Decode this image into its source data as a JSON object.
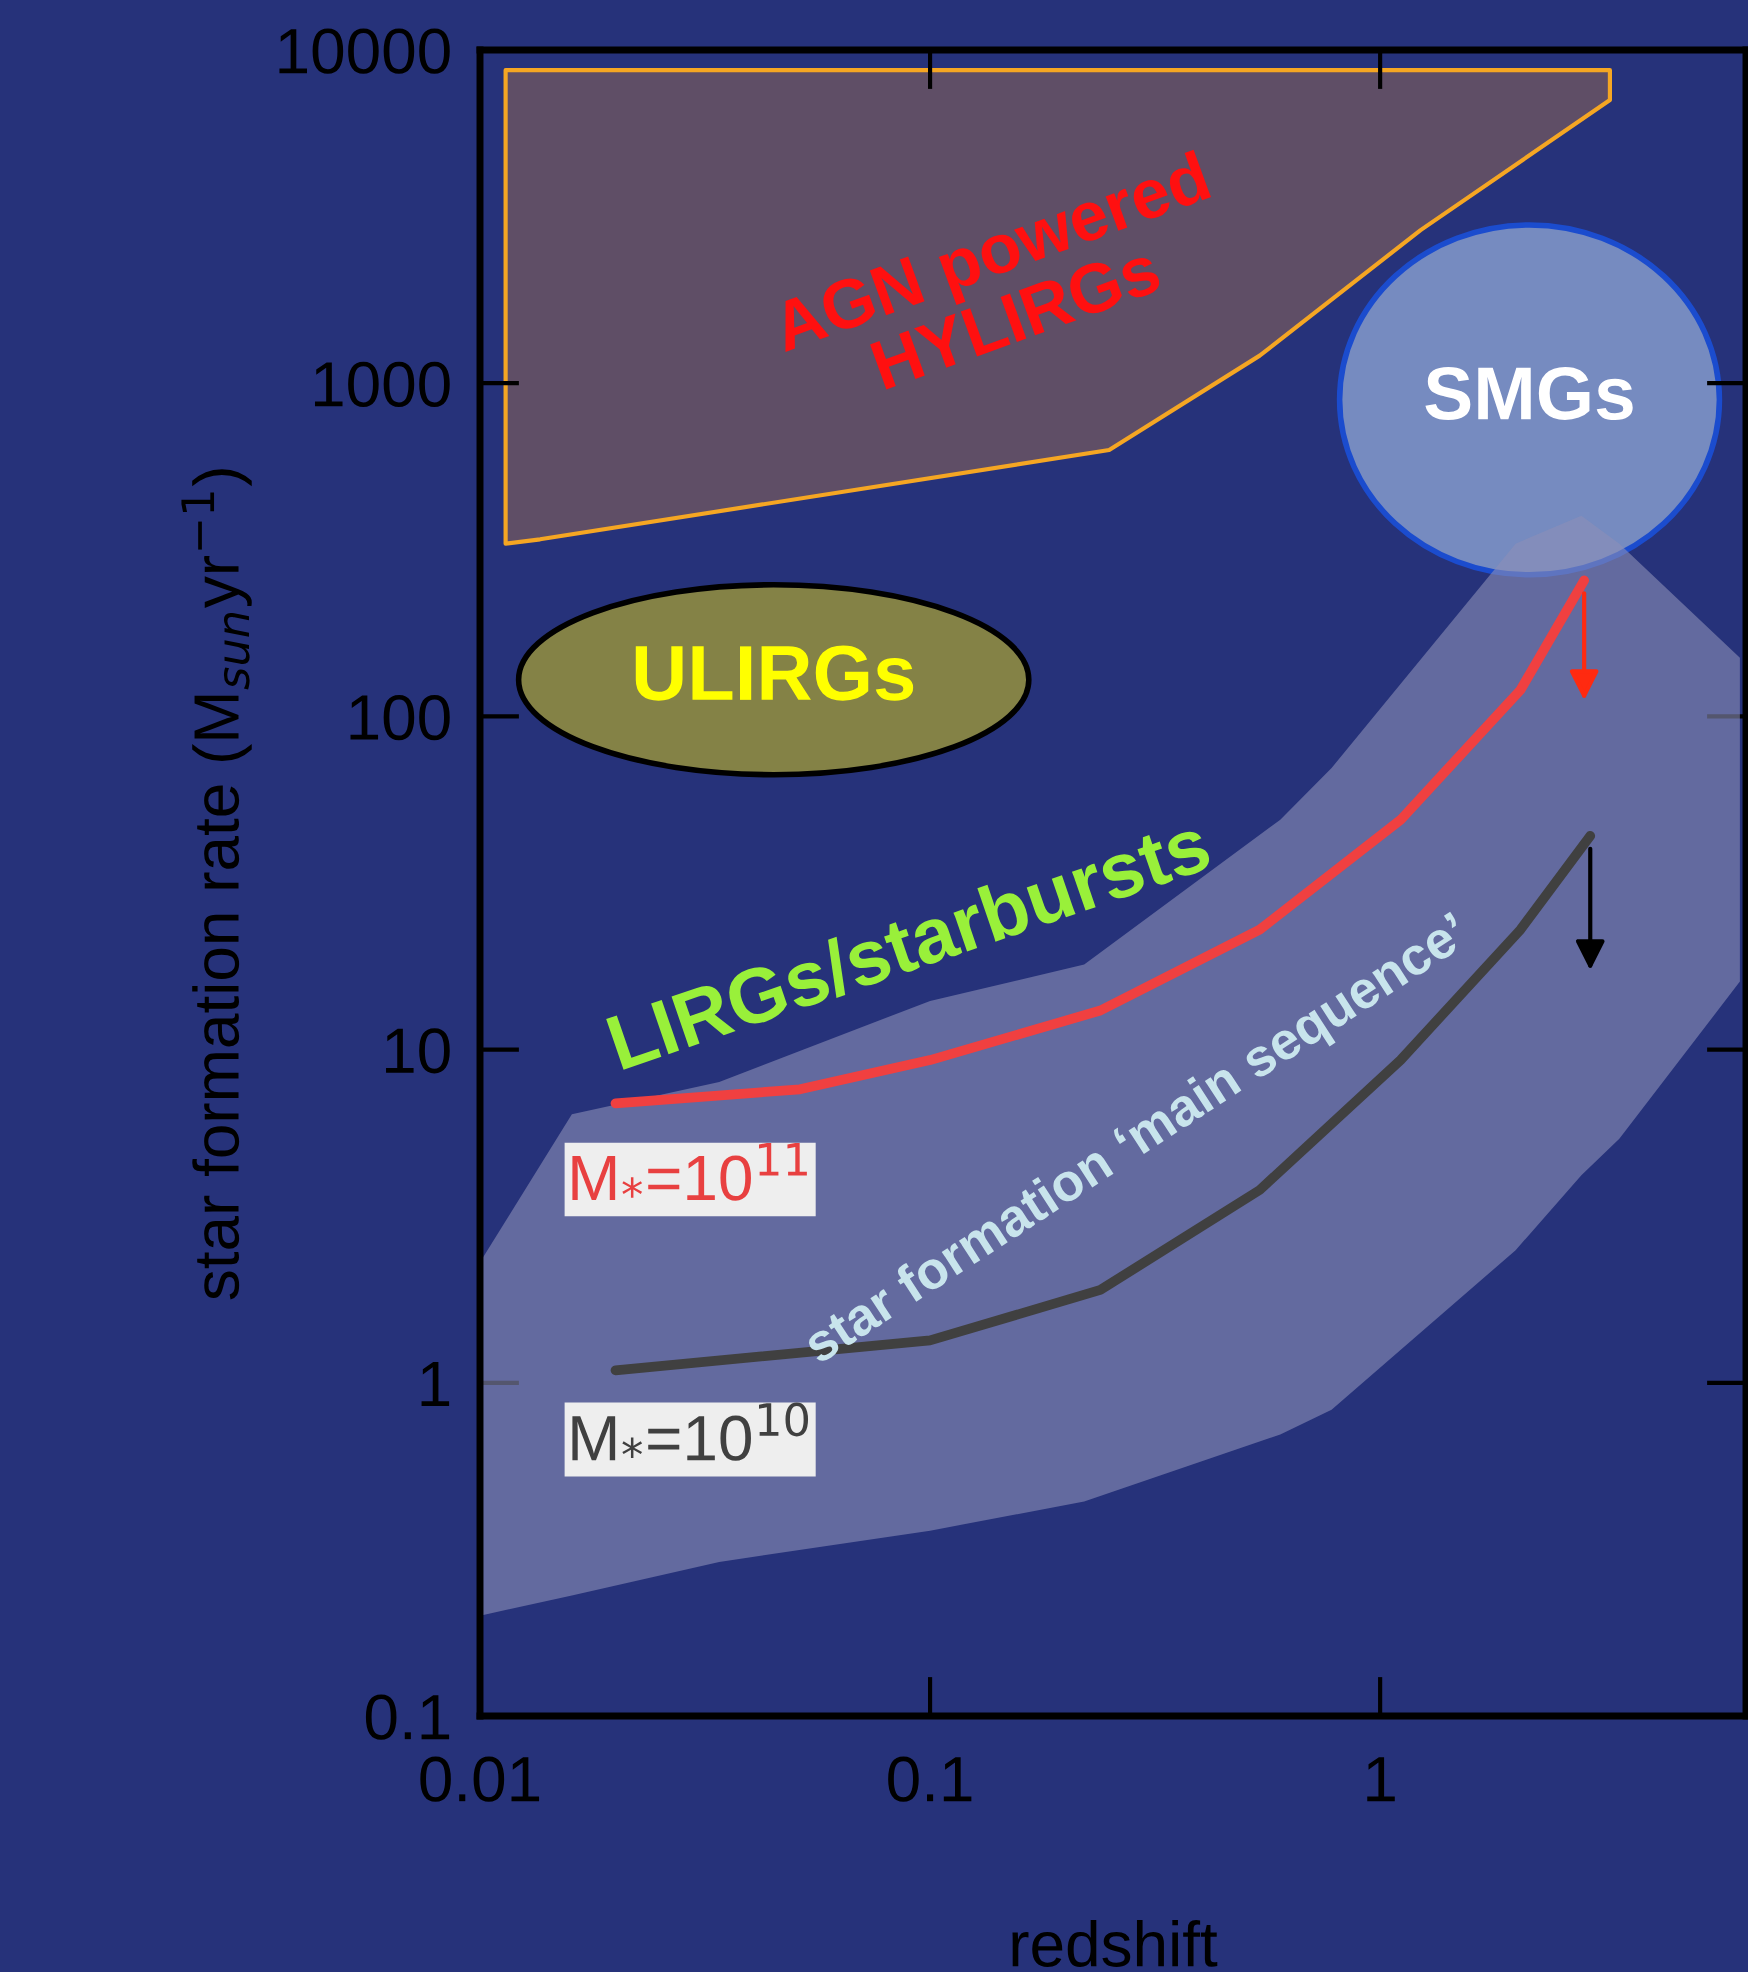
{
  "chart_data": {
    "type": "line",
    "xlabel": "redshift",
    "ylabel": "star formation rate (M$_{sun}$yr$^{−1}$)",
    "log": "xy",
    "xlim": [
      0.01,
      6.5
    ],
    "ylim": [
      0.1,
      10000
    ],
    "xticks": [
      0.01,
      0.1,
      1
    ],
    "yticks": [
      0.1,
      1,
      10,
      100,
      1000,
      10000
    ],
    "grid": false,
    "series": [
      {
        "type": "area",
        "color": "#5f4e66",
        "x": [
          0.0114,
          0.0136,
          0.25,
          0.54,
          1.23,
          3.24
        ],
        "values": [
          null,
          null,
          null,
          null,
          null,
          null
        ],
        "lower": [
          330,
          340,
          630,
          1210,
          2880,
          7080
        ],
        "upper": [
          8700,
          8700,
          8700,
          8700,
          8700,
          8700
        ]
      },
      {
        "type": "area",
        "color": "#8c90b8",
        "x": [
          0.01,
          0.016,
          0.034,
          0.1,
          0.22,
          0.6,
          0.78,
          2.0,
          2.8,
          3.4,
          6.3
        ],
        "values": [
          null,
          null,
          null,
          null,
          null,
          null,
          null,
          null,
          null,
          null,
          null
        ],
        "upper": [
          2.3,
          6.4,
          8,
          14,
          18,
          49,
          70,
          330,
          400,
          330,
          150
        ],
        "lower": [
          0.2,
          0.23,
          0.29,
          0.36,
          0.44,
          0.7,
          0.83,
          2.5,
          4.2,
          5.4,
          16
        ]
      },
      {
        "color": "#f04040",
        "x": [
          0.02,
          0.0514,
          0.1,
          0.239,
          0.54,
          1.11,
          2.05,
          2.84
        ],
        "values": [
          6.9,
          7.6,
          9.3,
          13.1,
          22.9,
          48.9,
          120,
          256
        ]
      },
      {
        "color": "#404040",
        "x": [
          0.02,
          0.1,
          0.239,
          0.54,
          1.11,
          2.05,
          2.93
        ],
        "values": [
          1.09,
          1.34,
          1.9,
          3.79,
          9.3,
          22.9,
          43.8
        ]
      }
    ],
    "annotations": [
      "AGN powered\nHYLIRGs",
      "SMGs",
      "ULIRGs",
      "LIRGs/starbursts",
      "star formation ‘main sequence’",
      "M$_{*}$=10$^{11}$",
      "M$_{*}$=10$^{10}$"
    ]
  }
}
